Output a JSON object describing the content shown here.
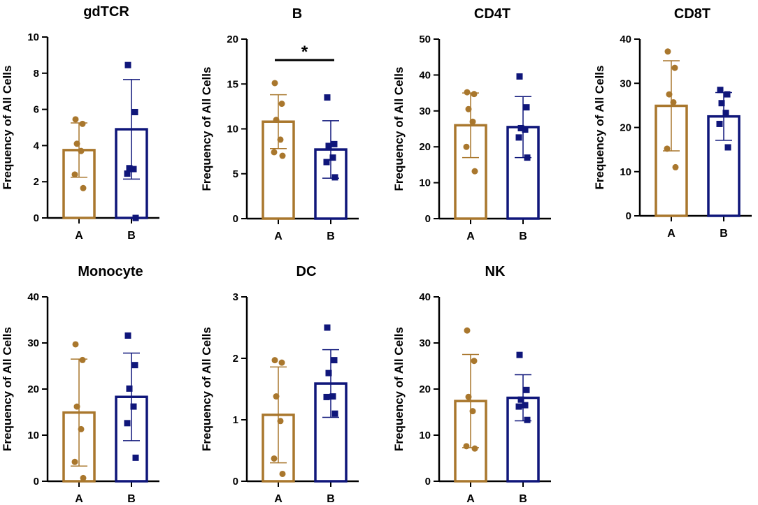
{
  "figure": {
    "background": "#ffffff"
  },
  "colors": {
    "A": "#A9772D",
    "B": "#0F167A",
    "axis": "#000000"
  },
  "markers": {
    "A": "circle",
    "B": "square"
  },
  "chart_data": [
    {
      "type": "bar",
      "title": "gdTCR",
      "ylabel": "Frequency of All Cells",
      "categories": [
        "A",
        "B"
      ],
      "ylim": [
        0,
        10
      ],
      "yticks": [
        "0",
        "2",
        "4",
        "6",
        "8",
        "10"
      ],
      "means": [
        3.75,
        4.9
      ],
      "sd": [
        1.5,
        2.75
      ],
      "points": [
        [
          5.45,
          5.2,
          4.1,
          3.7,
          2.4,
          1.65
        ],
        [
          8.45,
          5.85,
          2.75,
          2.7,
          2.45,
          0
        ]
      ],
      "significance": null
    },
    {
      "type": "bar",
      "title": "B",
      "ylabel": "Frequency of All Cells",
      "categories": [
        "A",
        "B"
      ],
      "ylim": [
        0,
        20
      ],
      "yticks": [
        "0",
        "5",
        "10",
        "15",
        "20"
      ],
      "means": [
        10.8,
        7.7
      ],
      "sd": [
        3.0,
        3.2
      ],
      "points": [
        [
          15.1,
          12.8,
          11.0,
          8.8,
          7.4,
          7.0
        ],
        [
          13.5,
          8.3,
          8.1,
          6.8,
          6.3,
          4.6
        ]
      ],
      "significance": "*"
    },
    {
      "type": "bar",
      "title": "CD4T",
      "ylabel": "Frequency of All Cells",
      "categories": [
        "A",
        "B"
      ],
      "ylim": [
        0,
        50
      ],
      "yticks": [
        "0",
        "10",
        "20",
        "30",
        "40",
        "50"
      ],
      "means": [
        26.0,
        25.5
      ],
      "sd": [
        9.0,
        8.5
      ],
      "points": [
        [
          35.2,
          34.7,
          30.5,
          27.0,
          20.0,
          13.2
        ],
        [
          39.6,
          31.0,
          25.2,
          24.8,
          22.6,
          17.0
        ]
      ],
      "significance": null
    },
    {
      "type": "bar",
      "title": "CD8T",
      "ylabel": "Frequency of All Cells",
      "categories": [
        "A",
        "B"
      ],
      "ylim": [
        0,
        40
      ],
      "yticks": [
        "0",
        "10",
        "20",
        "30",
        "40"
      ],
      "means": [
        24.9,
        22.5
      ],
      "sd": [
        10.2,
        5.4
      ],
      "points": [
        [
          37.2,
          33.5,
          27.5,
          25.7,
          15.2,
          11.0
        ],
        [
          28.5,
          27.5,
          25.5,
          23.3,
          20.8,
          15.5
        ]
      ],
      "significance": null
    },
    {
      "type": "bar",
      "title": "Monocyte",
      "ylabel": "Frequency of All Cells",
      "categories": [
        "A",
        "B"
      ],
      "ylim": [
        0,
        40
      ],
      "yticks": [
        "0",
        "10",
        "20",
        "30",
        "40"
      ],
      "means": [
        14.9,
        18.3
      ],
      "sd": [
        11.6,
        9.5
      ],
      "points": [
        [
          29.7,
          26.3,
          16.2,
          11.3,
          4.2,
          0.7
        ],
        [
          31.6,
          25.2,
          20.1,
          16.2,
          12.6,
          5.1
        ]
      ],
      "significance": null
    },
    {
      "type": "bar",
      "title": "DC",
      "ylabel": "Frequency of All Cells",
      "categories": [
        "A",
        "B"
      ],
      "ylim": [
        0,
        3
      ],
      "yticks": [
        "0",
        "1",
        "2",
        "3"
      ],
      "means": [
        1.08,
        1.59
      ],
      "sd": [
        0.78,
        0.55
      ],
      "points": [
        [
          1.97,
          1.93,
          1.38,
          0.98,
          0.37,
          0.12
        ],
        [
          2.5,
          1.97,
          1.76,
          1.38,
          1.37,
          1.1
        ]
      ],
      "significance": null
    },
    {
      "type": "bar",
      "title": "NK",
      "ylabel": "Frequency of All Cells",
      "categories": [
        "A",
        "B"
      ],
      "ylim": [
        0,
        40
      ],
      "yticks": [
        "0",
        "10",
        "20",
        "30",
        "40"
      ],
      "means": [
        17.4,
        18.1
      ],
      "sd": [
        10.1,
        5.0
      ],
      "points": [
        [
          32.7,
          26.1,
          18.3,
          15.2,
          7.6,
          7.1
        ],
        [
          27.4,
          19.8,
          17.7,
          16.5,
          16.2,
          13.3
        ]
      ],
      "significance": null
    }
  ]
}
